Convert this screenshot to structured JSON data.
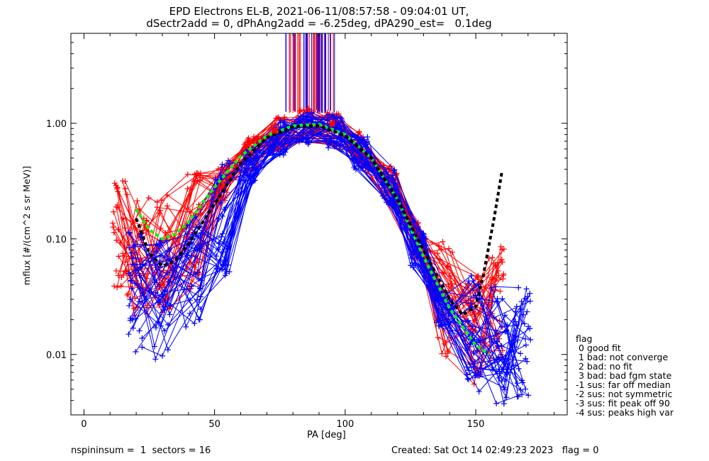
{
  "title_line1": "EPD Electrons EL-B, 2021-06-11/08:57:58 - 09:04:01 UT,",
  "title_line2": "dSectr2add = 0, dPhAng2add = -6.25deg, dPA290_est=   0.1deg",
  "footer_left": "nspininsum =  1  sectors = 16",
  "footer_right": "Created: Sat Oct 14 02:49:23 2023   flag = 0",
  "legend": {
    "title": "flag",
    "items": [
      " 0 good fit",
      " 1 bad: not converge",
      " 2 bad: no fit",
      " 3 bad: bad fgm state",
      "-1 sus: far off median",
      "-2 sus: not symmetric",
      "-3 sus: fit peak off 90",
      "-4 sus: peaks high var"
    ]
  },
  "colors": {
    "red": "#ff0000",
    "blue": "#0000ff",
    "green": "#00ff00",
    "black": "#000000"
  },
  "chart_data": {
    "type": "line",
    "xlabel": "PA [deg]",
    "ylabel": "mflux [#/(cm^2 s sr MeV)]",
    "xlim": [
      -5,
      185
    ],
    "ylim": [
      0.003,
      6.0
    ],
    "yscale": "log",
    "x_ticks": [
      0,
      50,
      100,
      150
    ],
    "x_tick_labels": [
      "0",
      "50",
      "100",
      "150"
    ],
    "y_ticks": [
      0.01,
      0.1,
      1.0
    ],
    "y_tick_labels": [
      "0.01",
      "0.10",
      "1.00"
    ],
    "series": [
      {
        "color": "red",
        "style": "line-plus",
        "x": [
          14,
          22,
          31,
          42,
          53,
          64,
          75,
          85,
          96,
          106,
          117,
          128,
          138,
          149,
          158
        ],
        "y": [
          0.1,
          0.07,
          0.075,
          0.12,
          0.3,
          0.55,
          0.82,
          0.97,
          0.88,
          0.6,
          0.32,
          0.1,
          0.03,
          0.018,
          0.03
        ]
      },
      {
        "color": "blue",
        "style": "line-plus",
        "x": [
          20,
          30,
          42,
          53,
          64,
          75,
          85,
          96,
          106,
          117,
          128,
          138,
          149,
          159,
          168
        ],
        "y": [
          0.035,
          0.03,
          0.05,
          0.15,
          0.42,
          0.75,
          0.92,
          0.86,
          0.55,
          0.28,
          0.08,
          0.025,
          0.015,
          0.012,
          0.012
        ]
      },
      {
        "color": "green",
        "style": "dashed-fit",
        "x": [
          20,
          25,
          30,
          35,
          40,
          50,
          60,
          70,
          80,
          90,
          100,
          110,
          120,
          130,
          140,
          150,
          155
        ],
        "y": [
          0.18,
          0.12,
          0.1,
          0.11,
          0.14,
          0.28,
          0.52,
          0.78,
          0.95,
          0.98,
          0.8,
          0.5,
          0.22,
          0.07,
          0.025,
          0.012,
          0.01
        ]
      },
      {
        "color": "black",
        "style": "dashed-fit",
        "x": [
          20,
          25,
          30,
          35,
          40,
          50,
          60,
          70,
          80,
          90,
          100,
          110,
          120,
          130,
          140,
          145,
          150,
          153,
          157,
          160
        ],
        "y": [
          0.15,
          0.075,
          0.058,
          0.065,
          0.09,
          0.2,
          0.45,
          0.75,
          0.93,
          0.95,
          0.78,
          0.5,
          0.22,
          0.08,
          0.03,
          0.022,
          0.026,
          0.05,
          0.15,
          0.38
        ]
      }
    ],
    "peak_markers": [
      {
        "color": "red",
        "x": 73,
        "y": 0.86
      },
      {
        "color": "red",
        "x": 95,
        "y": 0.99
      }
    ],
    "vertical_lines": {
      "x_min": 77,
      "x_max": 96,
      "y_from": 1.2,
      "colors": [
        "red",
        "blue"
      ]
    }
  }
}
